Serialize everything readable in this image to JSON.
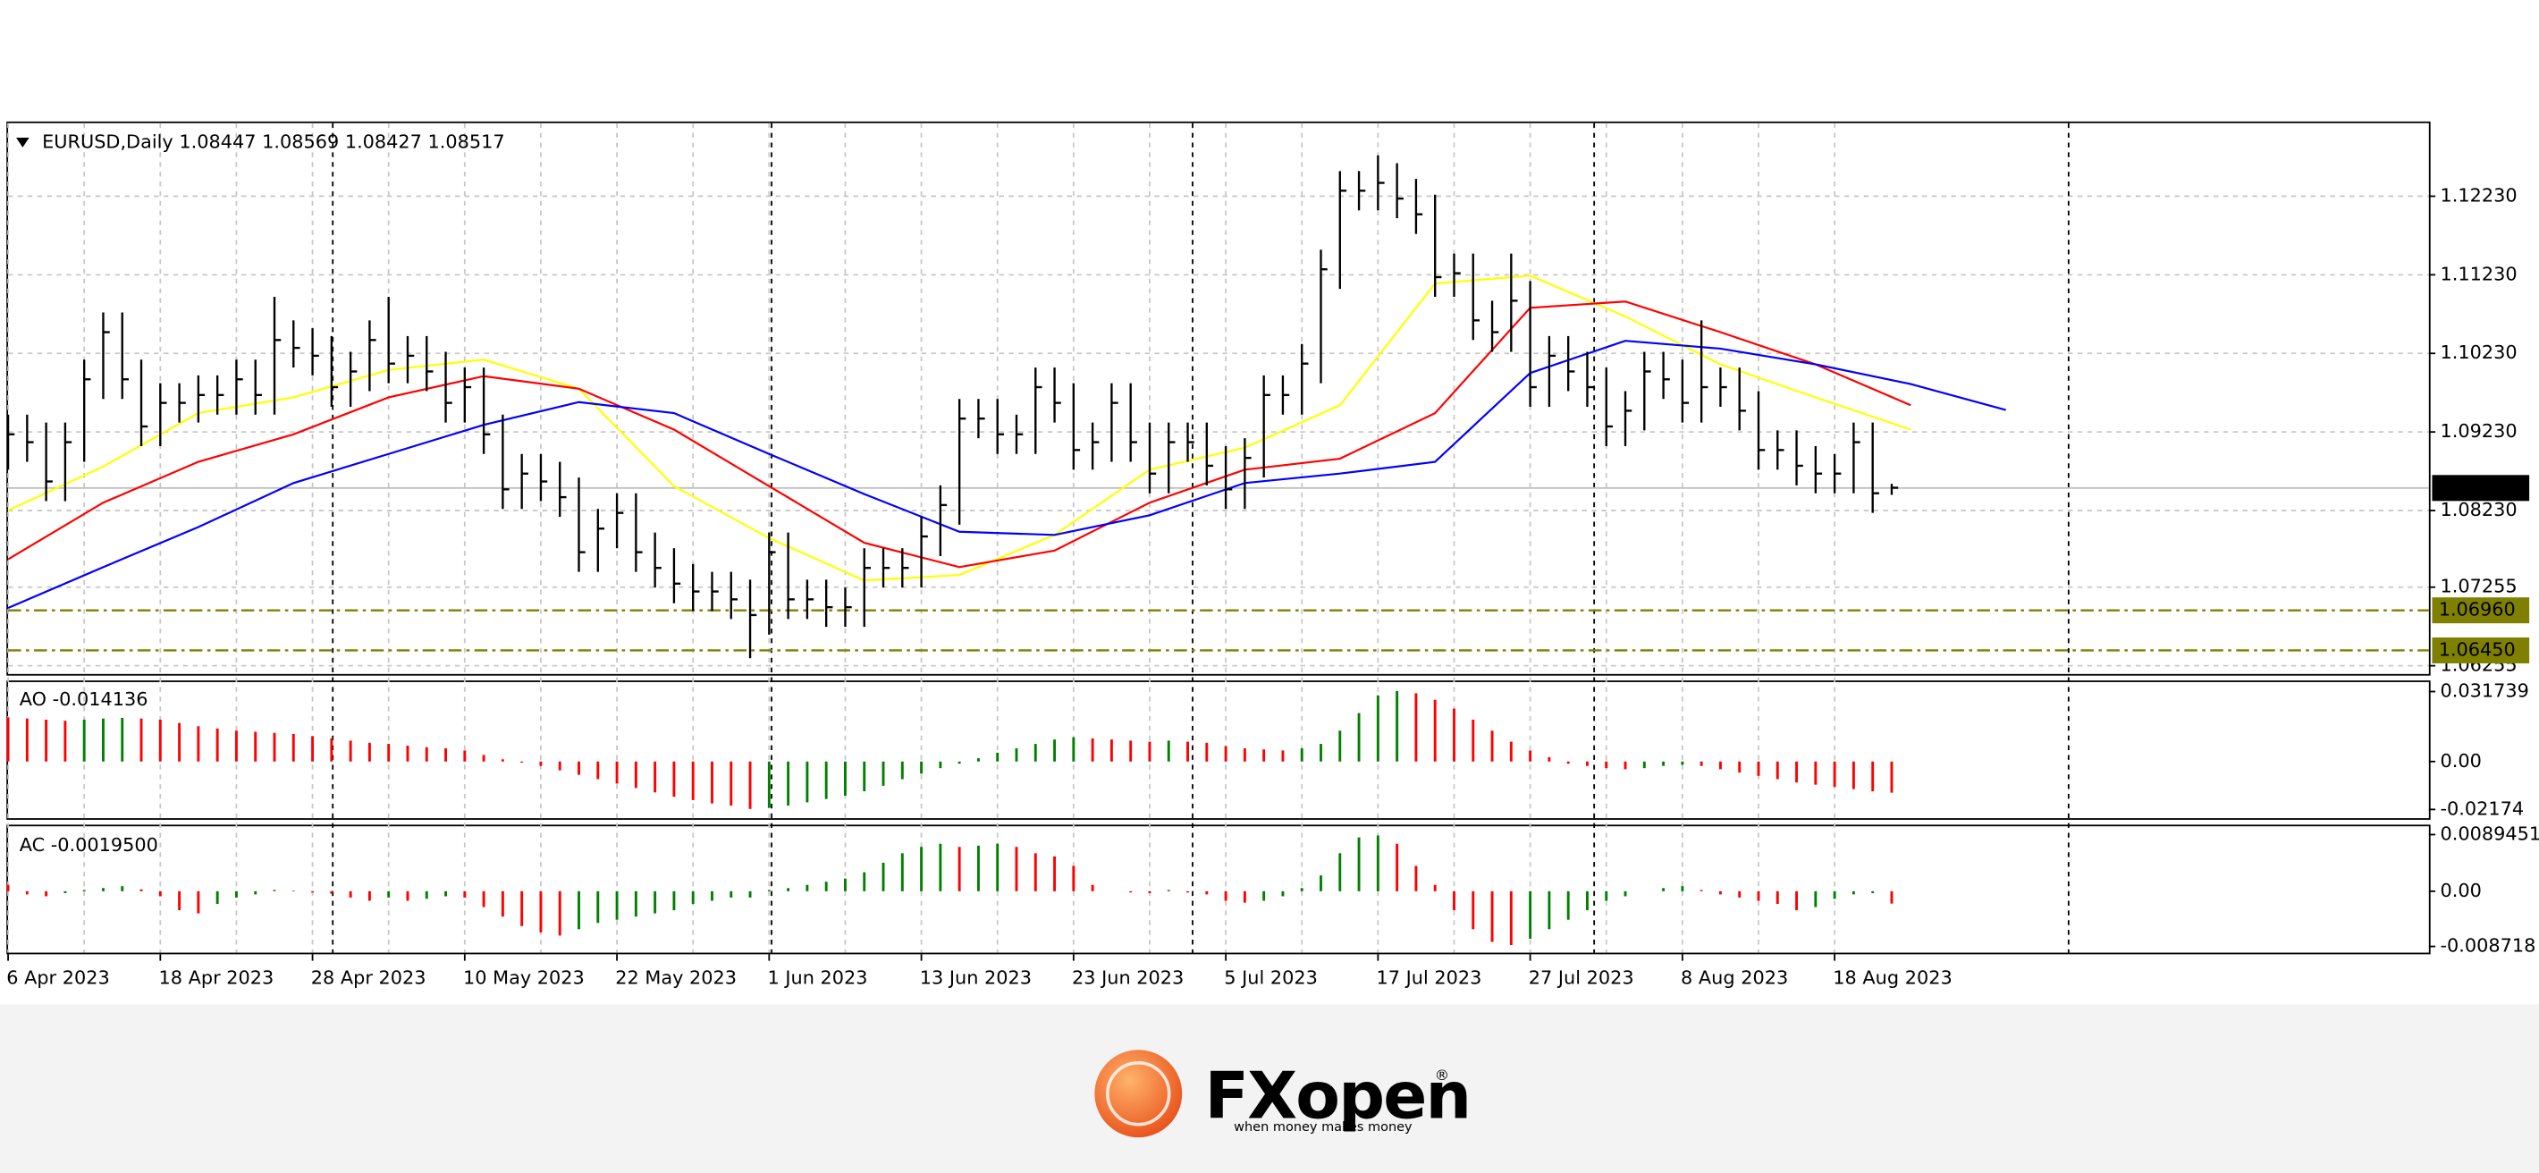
{
  "chart_data": [
    {
      "type": "ohlc",
      "title": "EURUSD,Daily  1.08447 1.08569 1.08427 1.08517",
      "categories": [
        "6 Apr 2023",
        null,
        null,
        null,
        null,
        null,
        null,
        null,
        "18 Apr 2023",
        null,
        null,
        null,
        null,
        null,
        null,
        null,
        "28 Apr 2023",
        null,
        null,
        null,
        null,
        null,
        null,
        null,
        "10 May 2023",
        null,
        null,
        null,
        null,
        null,
        null,
        null,
        "22 May 2023",
        null,
        null,
        null,
        null,
        null,
        null,
        null,
        "1 Jun 2023",
        null,
        null,
        null,
        null,
        null,
        null,
        null,
        "13 Jun 2023",
        null,
        null,
        null,
        null,
        null,
        null,
        null,
        "23 Jun 2023",
        null,
        null,
        null,
        null,
        null,
        null,
        null,
        "5 Jul 2023",
        null,
        null,
        null,
        null,
        null,
        null,
        null,
        "17 Jul 2023",
        null,
        null,
        null,
        null,
        null,
        null,
        null,
        "27 Jul 2023",
        null,
        null,
        null,
        null,
        null,
        null,
        null,
        "8 Aug 2023",
        null,
        null,
        null,
        null,
        null,
        null,
        null,
        "18 Aug 2023",
        null,
        null,
        null
      ],
      "high": [
        1.0945,
        1.0945,
        1.0935,
        1.0935,
        1.1015,
        1.1075,
        1.1075,
        1.1015,
        1.0985,
        1.0985,
        1.0995,
        1.0995,
        1.1015,
        1.1015,
        1.1095,
        1.1065,
        1.1055,
        1.1045,
        1.1025,
        1.1065,
        1.1095,
        1.1045,
        1.1045,
        1.1025,
        1.1005,
        1.1005,
        1.0945,
        1.0895,
        1.0895,
        1.0885,
        1.0865,
        1.0825,
        1.0845,
        1.0845,
        1.0795,
        1.0775,
        1.0755,
        1.0745,
        1.0745,
        1.0735,
        1.0795,
        1.0795,
        1.0735,
        1.0735,
        1.0725,
        1.0775,
        1.0775,
        1.0775,
        1.0815,
        1.0855,
        1.0965,
        1.0965,
        1.0965,
        1.0945,
        1.1005,
        1.1005,
        1.0985,
        1.0935,
        1.0985,
        1.0985,
        1.0935,
        1.0935,
        1.0935,
        1.0935,
        1.0905,
        1.0915,
        1.0995,
        1.0995,
        1.1035,
        1.1155,
        1.1255,
        1.1255,
        1.1275,
        1.1265,
        1.1245,
        1.1225,
        1.115,
        1.115,
        1.109,
        1.115,
        1.1115,
        1.1045,
        1.1045,
        1.1025,
        1.1005,
        1.0975,
        1.1025,
        1.1025,
        1.1015,
        1.1065,
        1.1005,
        1.1005,
        1.0975,
        1.0925,
        1.0925,
        1.0905,
        1.0895,
        1.0935,
        1.0935,
        1.0857
      ],
      "low": [
        1.0875,
        1.0885,
        1.0835,
        1.0835,
        1.0885,
        1.0965,
        1.0965,
        1.0905,
        1.0905,
        1.0935,
        1.0935,
        1.0945,
        1.0945,
        1.0945,
        1.0945,
        1.1005,
        1.0995,
        1.0955,
        1.0955,
        1.0975,
        1.0985,
        1.0985,
        1.0975,
        1.0935,
        1.0935,
        1.0895,
        1.0825,
        1.0825,
        1.0835,
        1.0815,
        1.0745,
        1.0745,
        1.0775,
        1.0745,
        1.0725,
        1.0705,
        1.0695,
        1.0695,
        1.0685,
        1.0635,
        1.0665,
        1.0685,
        1.0685,
        1.0675,
        1.0675,
        1.0675,
        1.0725,
        1.0725,
        1.0725,
        1.0765,
        1.0805,
        1.0915,
        1.0895,
        1.0895,
        1.0895,
        1.0935,
        1.0875,
        1.0875,
        1.0885,
        1.0885,
        1.0845,
        1.0845,
        1.0885,
        1.0855,
        1.0825,
        1.0825,
        1.0865,
        1.0945,
        1.0945,
        1.0985,
        1.1105,
        1.1205,
        1.1205,
        1.1195,
        1.1175,
        1.1095,
        1.1095,
        1.104,
        1.1025,
        1.1025,
        1.0955,
        1.0955,
        1.0975,
        1.0955,
        1.0905,
        1.0905,
        1.0925,
        1.0965,
        1.0935,
        1.0935,
        1.0955,
        1.0925,
        1.0875,
        1.0875,
        1.0855,
        1.0845,
        1.0845,
        1.0845,
        1.082,
        1.0843
      ],
      "close": [
        1.092,
        1.091,
        1.086,
        1.091,
        1.099,
        1.105,
        1.099,
        1.093,
        1.096,
        1.096,
        1.097,
        1.097,
        1.099,
        1.097,
        1.104,
        1.103,
        1.102,
        1.098,
        1.1,
        1.104,
        1.101,
        1.102,
        1.1,
        1.096,
        1.098,
        1.092,
        1.085,
        1.087,
        1.086,
        1.084,
        1.077,
        1.08,
        1.082,
        1.077,
        1.075,
        1.073,
        1.072,
        1.072,
        1.071,
        1.069,
        1.077,
        1.071,
        1.071,
        1.07,
        1.07,
        1.075,
        1.075,
        1.075,
        1.079,
        1.083,
        1.094,
        1.094,
        1.092,
        1.092,
        1.098,
        1.096,
        1.09,
        1.091,
        1.096,
        1.091,
        1.087,
        1.091,
        1.091,
        1.088,
        1.085,
        1.089,
        1.097,
        1.097,
        1.101,
        1.113,
        1.123,
        1.123,
        1.124,
        1.122,
        1.12,
        1.112,
        1.1125,
        1.1065,
        1.105,
        1.109,
        1.098,
        1.102,
        1.1,
        1.098,
        1.093,
        1.095,
        1.1,
        1.099,
        1.096,
        1.098,
        1.098,
        1.095,
        1.09,
        1.09,
        1.088,
        1.087,
        1.087,
        1.091,
        1.0845,
        1.0852
      ],
      "bar_color": "#000000",
      "ylim": [
        1.0615,
        1.1316
      ],
      "yticks": [
        {
          "value": 1.1223,
          "label": "1.12230"
        },
        {
          "value": 1.1123,
          "label": "1.11230"
        },
        {
          "value": 1.1023,
          "label": "1.10230"
        },
        {
          "value": 1.0923,
          "label": "1.09230"
        },
        {
          "value": 1.0823,
          "label": "1.08230"
        },
        1.07255,
        1.06255
      ],
      "grid": true,
      "moving_averages": {
        "x": [
          0,
          5,
          10,
          15,
          20,
          25,
          30,
          35,
          40,
          45,
          50,
          55,
          60,
          65,
          70,
          75,
          80,
          85,
          90,
          95,
          100,
          105
        ],
        "series": [
          {
            "color": "#ffff00",
            "values": [
              1.0823,
              1.0879,
              1.0947,
              1.0967,
              1.1002,
              1.1015,
              1.0978,
              1.0854,
              1.0788,
              1.0734,
              1.0741,
              1.0792,
              1.0875,
              1.0903,
              1.0957,
              1.1112,
              1.1122,
              1.107,
              1.1009,
              1.0967,
              1.0926,
              null
            ]
          },
          {
            "color": "#ff0000",
            "values": [
              1.0761,
              1.0833,
              1.0885,
              1.092,
              1.0967,
              1.0994,
              1.0978,
              1.0926,
              1.0854,
              1.0782,
              1.0751,
              1.0772,
              1.0833,
              1.0875,
              1.0889,
              1.0947,
              1.1081,
              1.1089,
              1.105,
              1.1009,
              1.0957,
              null
            ]
          },
          {
            "color": "#0000ff",
            "values": [
              1.0699,
              1.0751,
              1.0802,
              1.0858,
              1.0895,
              1.0932,
              1.0961,
              1.0947,
              1.0895,
              1.0844,
              1.0796,
              1.0792,
              1.0817,
              1.0858,
              1.087,
              1.0885,
              1.0998,
              1.1039,
              1.1029,
              1.1009,
              1.0984,
              1.0951
            ]
          }
        ]
      },
      "levels": [
        {
          "value": 1.0696,
          "label": "1.06960",
          "color": "#808000"
        },
        {
          "value": 1.0645,
          "label": "1.06450",
          "color": "#808000"
        }
      ],
      "last_price": 1.08517,
      "last_price_color": "#000000"
    },
    {
      "type": "oscillator",
      "title": "AO -0.014136",
      "up_color": "#008000",
      "down_color": "#ff0000",
      "values": [
        0.02,
        0.0195,
        0.019,
        0.0185,
        0.019,
        0.0195,
        0.0198,
        0.0195,
        0.019,
        0.0175,
        0.016,
        0.015,
        0.014,
        0.0135,
        0.013,
        0.0125,
        0.0115,
        0.0105,
        0.0095,
        0.0085,
        0.008,
        0.0072,
        0.0065,
        0.006,
        0.005,
        0.003,
        0.001,
        -0.0005,
        -0.002,
        -0.004,
        -0.006,
        -0.008,
        -0.01,
        -0.012,
        -0.014,
        -0.016,
        -0.0175,
        -0.019,
        -0.02,
        -0.0215,
        -0.021,
        -0.02,
        -0.0185,
        -0.017,
        -0.0155,
        -0.0135,
        -0.011,
        -0.008,
        -0.0055,
        -0.003,
        -0.001,
        0.0015,
        0.004,
        0.006,
        0.008,
        0.01,
        0.011,
        0.0105,
        0.01,
        0.0095,
        0.009,
        0.0095,
        0.009,
        0.0085,
        0.007,
        0.006,
        0.0055,
        0.005,
        0.006,
        0.008,
        0.014,
        0.022,
        0.03,
        0.032,
        0.031,
        0.028,
        0.024,
        0.019,
        0.014,
        0.009,
        0.005,
        0.002,
        -0.001,
        -0.002,
        -0.003,
        -0.0035,
        -0.003,
        -0.002,
        -0.0015,
        -0.002,
        -0.0035,
        -0.005,
        -0.0065,
        -0.008,
        -0.0095,
        -0.0105,
        -0.0115,
        -0.0125,
        -0.0135,
        -0.014136
      ],
      "ylim": [
        -0.0257,
        0.0353
      ],
      "yticks": [
        0.031739,
        {
          "value": 0,
          "label": "0.00"
        },
        -0.02174
      ]
    },
    {
      "type": "oscillator",
      "title": "AC -0.0019500",
      "up_color": "#008000",
      "down_color": "#ff0000",
      "values": [
        0.001,
        -0.0005,
        -0.0008,
        -0.0003,
        0.0002,
        0.0005,
        0.0008,
        0.0003,
        -0.0008,
        -0.003,
        -0.0035,
        -0.002,
        -0.001,
        -0.0005,
        0.0002,
        0.0001,
        -0.0002,
        -0.0004,
        -0.001,
        -0.0015,
        -0.001,
        -0.0015,
        -0.0012,
        -0.0008,
        -0.001,
        -0.0025,
        -0.004,
        -0.0055,
        -0.0065,
        -0.007,
        -0.006,
        -0.005,
        -0.0045,
        -0.004,
        -0.0035,
        -0.003,
        -0.002,
        -0.0015,
        -0.001,
        -0.001,
        0.0002,
        0.0005,
        0.001,
        0.0015,
        0.002,
        0.003,
        0.0045,
        0.006,
        0.007,
        0.0075,
        0.007,
        0.0072,
        0.0075,
        0.007,
        0.006,
        0.0055,
        0.004,
        0.001,
        0,
        -0.0002,
        -0.0003,
        0.0002,
        -0.0002,
        -0.0005,
        -0.0015,
        -0.0018,
        -0.0015,
        -0.0008,
        0.0005,
        0.0025,
        0.006,
        0.0085,
        0.0088,
        0.0075,
        0.004,
        0.001,
        -0.003,
        -0.006,
        -0.008,
        -0.0085,
        -0.0075,
        -0.006,
        -0.0045,
        -0.003,
        -0.0015,
        -0.0008,
        0,
        0.0005,
        0.0008,
        0.0002,
        -0.0005,
        -0.001,
        -0.0015,
        -0.002,
        -0.003,
        -0.0025,
        -0.0012,
        -0.0005,
        -0.0003,
        -0.00195
      ],
      "ylim": [
        -0.0097,
        0.01
      ],
      "yticks": [
        0.0089451,
        {
          "value": 0,
          "label": "0.00"
        },
        -0.008718
      ]
    }
  ],
  "logo": {
    "brand": "FXopen",
    "registered": "®",
    "tagline": "when money makes money"
  }
}
